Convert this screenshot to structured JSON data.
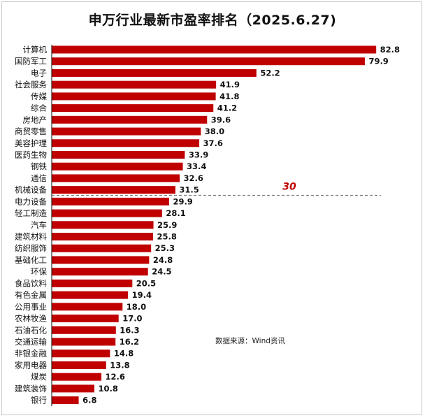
{
  "chart_data": {
    "type": "bar",
    "orientation": "horizontal",
    "title": "申万行业最新市盈率排名（2025.6.27)",
    "categories": [
      "计算机",
      "国防军工",
      "电子",
      "社会服务",
      "传媒",
      "综合",
      "房地产",
      "商贸零售",
      "美容护理",
      "医药生物",
      "钢铁",
      "通信",
      "机械设备",
      "电力设备",
      "轻工制造",
      "汽车",
      "建筑材料",
      "纺织服饰",
      "基础化工",
      "环保",
      "食品饮料",
      "有色金属",
      "公用事业",
      "农林牧渔",
      "石油石化",
      "交通运输",
      "非银金融",
      "家用电器",
      "煤炭",
      "建筑装饰",
      "银行"
    ],
    "values": [
      82.8,
      79.9,
      52.2,
      41.9,
      41.8,
      41.2,
      39.6,
      38.0,
      37.6,
      33.9,
      33.4,
      32.6,
      31.5,
      29.9,
      28.1,
      25.9,
      25.8,
      25.3,
      24.8,
      24.5,
      20.5,
      19.4,
      18.0,
      17.0,
      16.3,
      16.2,
      14.8,
      13.8,
      12.6,
      10.8,
      6.8
    ],
    "value_labels": [
      "82.8",
      "79.9",
      "52.2",
      "41.9",
      "41.8",
      "41.2",
      "39.6",
      "38.0",
      "37.6",
      "33.9",
      "33.4",
      "32.6",
      "31.5",
      "29.9",
      "28.1",
      "25.9",
      "25.8",
      "25.3",
      "24.8",
      "24.5",
      "20.5",
      "19.4",
      "18.0",
      "17.0",
      "16.3",
      "16.2",
      "14.8",
      "13.8",
      "12.6",
      "10.8",
      "6.8"
    ],
    "xlim": [
      0,
      85
    ],
    "reference_line": {
      "value": 30,
      "label": "30",
      "style": "dashed"
    },
    "grid": false,
    "legend": "none",
    "colors": {
      "bar": "#c00000",
      "reference_label": "#c00000",
      "reference_line": "#7f7f7f"
    }
  },
  "source_note": "数据来源：Wind资讯"
}
